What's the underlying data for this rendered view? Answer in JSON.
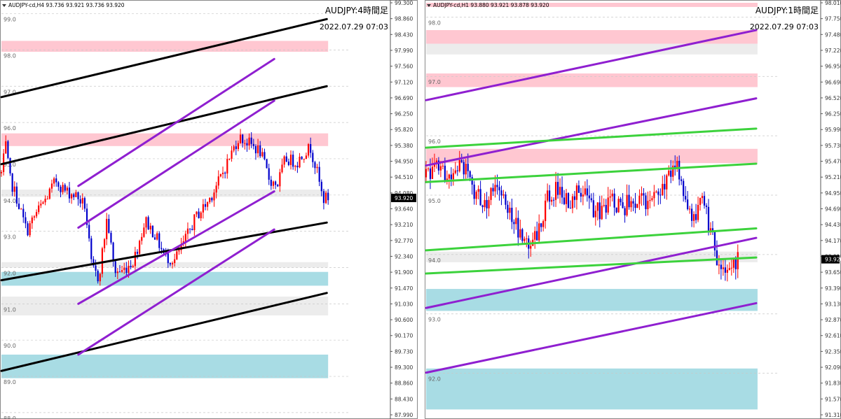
{
  "chart_data": [
    {
      "type": "candlestick",
      "symbol_info": "AUDJPY-cd,H4  93.736 93.921 93.736 93.920",
      "title": "AUDJPY:4時間足",
      "date": "2022.07.29 07:03",
      "current_price": "93.920",
      "ylim": [
        87.94,
        99.3
      ],
      "price_ticks": [
        "99.300",
        "98.860",
        "98.430",
        "97.990",
        "97.560",
        "97.120",
        "96.690",
        "96.250",
        "95.820",
        "95.380",
        "94.950",
        "94.510",
        "94.080",
        "93.640",
        "93.210",
        "92.770",
        "92.340",
        "91.900",
        "91.470",
        "91.030",
        "90.600",
        "90.170",
        "89.730",
        "89.300",
        "88.860",
        "88.430",
        "87.990"
      ],
      "level_labels": [
        {
          "text": "99.0",
          "price": 99.0
        },
        {
          "text": "98.0",
          "price": 98.0
        },
        {
          "text": "97.0",
          "price": 97.0
        },
        {
          "text": "96.0",
          "price": 96.0
        },
        {
          "text": "95.0",
          "price": 95.0
        },
        {
          "text": "94.0",
          "price": 94.0
        },
        {
          "text": "93.0",
          "price": 93.0
        },
        {
          "text": "92.0",
          "price": 92.0
        },
        {
          "text": "91.0",
          "price": 91.0
        },
        {
          "text": "90.0",
          "price": 90.0
        },
        {
          "text": "89.0",
          "price": 89.0
        },
        {
          "text": "88.0",
          "price": 88.0
        }
      ],
      "zones": [
        {
          "kind": "resistance",
          "from": 97.95,
          "to": 98.25,
          "color": "#ffc7d1"
        },
        {
          "kind": "resistance",
          "from": 95.35,
          "to": 95.7,
          "color": "#ffc7d1"
        },
        {
          "kind": "neutral",
          "from": 93.95,
          "to": 94.15,
          "color": "#ececec"
        },
        {
          "kind": "neutral",
          "from": 92.0,
          "to": 92.15,
          "color": "#ececec"
        },
        {
          "kind": "support",
          "from": 91.5,
          "to": 91.88,
          "color": "#a8dce4"
        },
        {
          "kind": "neutral",
          "from": 90.68,
          "to": 91.2,
          "color": "#ececec"
        },
        {
          "kind": "support",
          "from": 88.95,
          "to": 89.6,
          "color": "#a8dce4"
        }
      ],
      "trendlines": [
        {
          "color": "#000000",
          "from": [
            0.0,
            96.7
          ],
          "to": [
            0.99,
            98.85
          ]
        },
        {
          "color": "#000000",
          "from": [
            0.0,
            94.85
          ],
          "to": [
            0.99,
            97.0
          ]
        },
        {
          "color": "#000000",
          "from": [
            0.0,
            91.65
          ],
          "to": [
            0.99,
            93.24
          ]
        },
        {
          "color": "#000000",
          "from": [
            0.0,
            89.15
          ],
          "to": [
            0.99,
            91.3
          ]
        },
        {
          "color": "#8f1fd0",
          "from": [
            0.23,
            94.25
          ],
          "to": [
            0.83,
            97.75
          ]
        },
        {
          "color": "#8f1fd0",
          "from": [
            0.23,
            93.1
          ],
          "to": [
            0.83,
            96.6
          ]
        },
        {
          "color": "#8f1fd0",
          "from": [
            0.23,
            91.0
          ],
          "to": [
            0.83,
            94.1
          ]
        },
        {
          "color": "#8f1fd0",
          "from": [
            0.23,
            89.6
          ],
          "to": [
            0.83,
            93.05
          ]
        }
      ],
      "anchors": [
        [
          0,
          94.6
        ],
        [
          0.012,
          95.4
        ],
        [
          0.02,
          94.5
        ],
        [
          0.04,
          93.9
        ],
        [
          0.065,
          93.0
        ],
        [
          0.09,
          93.5
        ],
        [
          0.115,
          93.9
        ],
        [
          0.14,
          94.4
        ],
        [
          0.165,
          94.1
        ],
        [
          0.19,
          94.0
        ],
        [
          0.215,
          93.7
        ],
        [
          0.232,
          92.0
        ],
        [
          0.25,
          91.7
        ],
        [
          0.272,
          93.4
        ],
        [
          0.29,
          91.9
        ],
        [
          0.31,
          91.9
        ],
        [
          0.34,
          92.2
        ],
        [
          0.37,
          93.3
        ],
        [
          0.395,
          92.9
        ],
        [
          0.42,
          92.3
        ],
        [
          0.445,
          92.2
        ],
        [
          0.47,
          92.7
        ],
        [
          0.5,
          93.4
        ],
        [
          0.53,
          93.8
        ],
        [
          0.56,
          94.4
        ],
        [
          0.585,
          95.0
        ],
        [
          0.61,
          95.6
        ],
        [
          0.64,
          95.4
        ],
        [
          0.665,
          95.2
        ],
        [
          0.69,
          94.4
        ],
        [
          0.71,
          94.3
        ],
        [
          0.73,
          95.0
        ],
        [
          0.76,
          94.9
        ],
        [
          0.78,
          95.2
        ],
        [
          0.795,
          95.3
        ],
        [
          0.81,
          94.7
        ],
        [
          0.826,
          93.9
        ],
        [
          0.84,
          93.92
        ]
      ],
      "candles": {
        "count": 150,
        "up_color": "#ff0000",
        "down_color": "#0000cc"
      }
    },
    {
      "type": "candlestick",
      "symbol_info": "AUDJPY-cd,H1  93.880 93.921 93.878 93.920",
      "title": "AUDJPY:1時間足",
      "date": "2022.07.29 07:03",
      "current_price": "93.920",
      "ylim": [
        91.3,
        98.24
      ],
      "price_ticks": [
        "98.010",
        "97.750",
        "97.480",
        "97.220",
        "96.950",
        "96.690",
        "96.520",
        "96.250",
        "95.990",
        "95.730",
        "95.470",
        "95.210",
        "94.950",
        "94.690",
        "94.430",
        "94.170",
        "93.910",
        "93.650",
        "93.390",
        "93.130",
        "92.870",
        "92.610",
        "92.350",
        "92.090",
        "91.830",
        "91.570",
        "91.310"
      ],
      "level_labels": [
        {
          "text": "98.0",
          "price": 98.0
        },
        {
          "text": "97.0",
          "price": 97.0
        },
        {
          "text": "96.0",
          "price": 96.0
        },
        {
          "text": "95.0",
          "price": 95.0
        },
        {
          "text": "94.0",
          "price": 94.0
        },
        {
          "text": "93.0",
          "price": 93.0
        },
        {
          "text": "92.0",
          "price": 92.0
        }
      ],
      "zones": [
        {
          "kind": "resistance",
          "from": 98.17,
          "to": 98.24,
          "color": "#ffc7d1"
        },
        {
          "kind": "resistance",
          "from": 97.55,
          "to": 97.78,
          "color": "#ffc7d1"
        },
        {
          "kind": "neutral",
          "from": 97.37,
          "to": 97.55,
          "color": "#ececec"
        },
        {
          "kind": "resistance",
          "from": 96.82,
          "to": 97.05,
          "color": "#ffc7d1"
        },
        {
          "kind": "resistance",
          "from": 95.54,
          "to": 95.78,
          "color": "#ffc7d1"
        },
        {
          "kind": "neutral",
          "from": 93.87,
          "to": 94.05,
          "color": "#ececec"
        },
        {
          "kind": "support",
          "from": 93.05,
          "to": 93.42,
          "color": "#a8dce4"
        },
        {
          "kind": "support",
          "from": 91.39,
          "to": 92.08,
          "color": "#a8dce4"
        }
      ],
      "trendlines": [
        {
          "color": "#8f1fd0",
          "from": [
            0.0,
            96.6
          ],
          "to": [
            0.99,
            97.78
          ]
        },
        {
          "color": "#8f1fd0",
          "from": [
            0.0,
            95.5
          ],
          "to": [
            0.99,
            96.63
          ]
        },
        {
          "color": "#8f1fd0",
          "from": [
            0.0,
            93.1
          ],
          "to": [
            0.99,
            94.28
          ]
        },
        {
          "color": "#8f1fd0",
          "from": [
            0.0,
            92.01
          ],
          "to": [
            0.99,
            93.18
          ]
        },
        {
          "color": "#3cd23c",
          "from": [
            0.0,
            95.8
          ],
          "to": [
            0.99,
            96.12
          ]
        },
        {
          "color": "#3cd23c",
          "from": [
            0.0,
            95.22
          ],
          "to": [
            0.99,
            95.53
          ]
        },
        {
          "color": "#3cd23c",
          "from": [
            0.0,
            94.07
          ],
          "to": [
            0.99,
            94.44
          ]
        },
        {
          "color": "#3cd23c",
          "from": [
            0.0,
            93.68
          ],
          "to": [
            0.99,
            93.95
          ]
        }
      ],
      "anchors": [
        [
          0,
          95.3
        ],
        [
          0.03,
          95.6
        ],
        [
          0.06,
          95.2
        ],
        [
          0.09,
          95.5
        ],
        [
          0.12,
          95.1
        ],
        [
          0.15,
          94.9
        ],
        [
          0.18,
          95.2
        ],
        [
          0.2,
          94.9
        ],
        [
          0.225,
          94.6
        ],
        [
          0.24,
          94.3
        ],
        [
          0.26,
          94.2
        ],
        [
          0.285,
          94.4
        ],
        [
          0.31,
          95.0
        ],
        [
          0.335,
          95.1
        ],
        [
          0.36,
          94.9
        ],
        [
          0.39,
          95.05
        ],
        [
          0.42,
          94.8
        ],
        [
          0.445,
          94.7
        ],
        [
          0.47,
          94.9
        ],
        [
          0.5,
          94.8
        ],
        [
          0.53,
          94.95
        ],
        [
          0.56,
          94.8
        ],
        [
          0.59,
          95.0
        ],
        [
          0.62,
          95.3
        ],
        [
          0.638,
          95.5
        ],
        [
          0.66,
          94.8
        ],
        [
          0.68,
          94.5
        ],
        [
          0.7,
          94.9
        ],
        [
          0.72,
          94.4
        ],
        [
          0.74,
          93.9
        ],
        [
          0.76,
          93.72
        ],
        [
          0.78,
          93.88
        ],
        [
          0.79,
          93.92
        ]
      ],
      "candles": {
        "count": 150,
        "up_color": "#ff0000",
        "down_color": "#0000cc"
      }
    }
  ]
}
